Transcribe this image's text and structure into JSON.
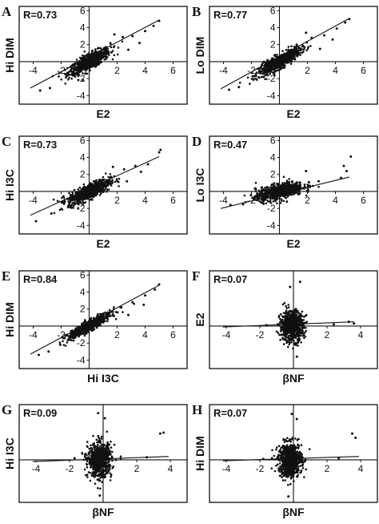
{
  "figure": {
    "background": "#ffffff",
    "ink": "#111111"
  },
  "chart_data": [
    {
      "letter": "A",
      "type": "scatter",
      "title": "",
      "xlabel": "E2",
      "ylabel": "Hi DIM",
      "annotation": "R=0.73",
      "r": 0.73,
      "xlim": [
        -5,
        7
      ],
      "ylim": [
        -5,
        6.5
      ],
      "xticks": [
        -4,
        -2,
        2,
        4,
        6
      ],
      "yticks": [
        -4,
        -2,
        2,
        4,
        6
      ],
      "regression_line": {
        "from": [
          -4.2,
          -3.1
        ],
        "to": [
          5,
          4.9
        ]
      },
      "point_cloud": {
        "center": [
          0,
          0
        ],
        "spread": 0.75,
        "slope": 0.85,
        "noise": 0.45,
        "n": 700
      },
      "outliers": [
        [
          2.4,
          2.9
        ],
        [
          3.1,
          3.0
        ],
        [
          4.0,
          3.6
        ],
        [
          4.6,
          4.2
        ],
        [
          5.0,
          4.8
        ],
        [
          1.8,
          3.2
        ],
        [
          2.8,
          1.4
        ],
        [
          -3.5,
          -3.4
        ],
        [
          -2.8,
          -3.1
        ],
        [
          3.6,
          2.2
        ]
      ],
      "grid": false,
      "legend": "none"
    },
    {
      "letter": "B",
      "type": "scatter",
      "title": "",
      "xlabel": "E2",
      "ylabel": "Lo DIM",
      "annotation": "R=0.77",
      "r": 0.77,
      "xlim": [
        -5,
        7
      ],
      "ylim": [
        -5,
        6.5
      ],
      "xticks": [
        -4,
        -2,
        2,
        4,
        6
      ],
      "yticks": [
        -4,
        -2,
        2,
        4,
        6
      ],
      "regression_line": {
        "from": [
          -4.2,
          -3.2
        ],
        "to": [
          5,
          5.1
        ]
      },
      "point_cloud": {
        "center": [
          0,
          0
        ],
        "spread": 0.75,
        "slope": 0.9,
        "noise": 0.4,
        "n": 700
      },
      "outliers": [
        [
          2.3,
          2.8
        ],
        [
          3.2,
          3.1
        ],
        [
          4.1,
          3.9
        ],
        [
          4.7,
          4.6
        ],
        [
          5.0,
          5.0
        ],
        [
          1.9,
          3.4
        ],
        [
          2.9,
          1.5
        ],
        [
          -3.6,
          -3.3
        ],
        [
          -2.9,
          -3.0
        ],
        [
          3.8,
          2.6
        ]
      ],
      "grid": false,
      "legend": "none"
    },
    {
      "letter": "C",
      "type": "scatter",
      "title": "",
      "xlabel": "E2",
      "ylabel": "Hi I3C",
      "annotation": "R=0.73",
      "r": 0.73,
      "xlim": [
        -5,
        7
      ],
      "ylim": [
        -5,
        6.5
      ],
      "xticks": [
        -4,
        -2,
        2,
        4,
        6
      ],
      "yticks": [
        -4,
        -2,
        2,
        4,
        6
      ],
      "regression_line": {
        "from": [
          -4.2,
          -2.8
        ],
        "to": [
          5,
          4.1
        ]
      },
      "point_cloud": {
        "center": [
          0,
          0
        ],
        "spread": 0.75,
        "slope": 0.75,
        "noise": 0.45,
        "n": 700
      },
      "outliers": [
        [
          2.5,
          2.6
        ],
        [
          3.3,
          3.0
        ],
        [
          4.2,
          3.2
        ],
        [
          5.0,
          4.6
        ],
        [
          5.1,
          4.9
        ],
        [
          1.7,
          2.9
        ],
        [
          2.7,
          1.2
        ],
        [
          -3.8,
          -3.5
        ],
        [
          -2.7,
          -2.6
        ],
        [
          3.7,
          2.3
        ]
      ],
      "grid": false,
      "legend": "none"
    },
    {
      "letter": "D",
      "type": "scatter",
      "title": "",
      "xlabel": "E2",
      "ylabel": "Lo I3C",
      "annotation": "R=0.47",
      "r": 0.47,
      "xlim": [
        -5,
        7
      ],
      "ylim": [
        -5,
        6.5
      ],
      "xticks": [
        -4,
        -2,
        2,
        4,
        6
      ],
      "yticks": [
        -4,
        -2,
        2,
        4,
        6
      ],
      "regression_line": {
        "from": [
          -4.2,
          -2.0
        ],
        "to": [
          5,
          1.7
        ]
      },
      "point_cloud": {
        "center": [
          0,
          0
        ],
        "spread": 0.85,
        "slope": 0.35,
        "noise": 0.45,
        "n": 700
      },
      "outliers": [
        [
          4.6,
          3.0
        ],
        [
          4.8,
          2.4
        ],
        [
          5.1,
          4.1
        ],
        [
          4.4,
          1.6
        ],
        [
          2.8,
          1.2
        ],
        [
          -3.5,
          -1.6
        ],
        [
          -2.6,
          -1.5
        ],
        [
          1.9,
          2.4
        ]
      ],
      "grid": false,
      "legend": "none"
    },
    {
      "letter": "E",
      "type": "scatter",
      "title": "",
      "xlabel": "Hi I3C",
      "ylabel": "Hi DIM",
      "annotation": "R=0.84",
      "r": 0.84,
      "xlim": [
        -5,
        7
      ],
      "ylim": [
        -5,
        6.5
      ],
      "xticks": [
        -4,
        -2,
        2,
        4,
        6
      ],
      "yticks": [
        -4,
        -2,
        2,
        4,
        6
      ],
      "regression_line": {
        "from": [
          -4.2,
          -3.3
        ],
        "to": [
          5,
          4.8
        ]
      },
      "point_cloud": {
        "center": [
          0,
          0
        ],
        "spread": 0.75,
        "slope": 0.9,
        "noise": 0.3,
        "n": 700
      },
      "outliers": [
        [
          2.3,
          2.2
        ],
        [
          3.1,
          2.8
        ],
        [
          4.0,
          3.6
        ],
        [
          4.7,
          4.3
        ],
        [
          5.0,
          4.9
        ],
        [
          2.8,
          1.3
        ],
        [
          -3.6,
          -3.4
        ],
        [
          -2.9,
          -3.0
        ],
        [
          3.9,
          2.5
        ]
      ],
      "grid": false,
      "legend": "none"
    },
    {
      "letter": "F",
      "type": "scatter",
      "title": "",
      "xlabel": "βNF",
      "ylabel": "E2",
      "annotation": "R=0.07",
      "r": 0.07,
      "xlim": [
        -5,
        5
      ],
      "ylim": [
        -5,
        6.5
      ],
      "xticks": [
        -4,
        -2,
        2,
        4
      ],
      "yticks": [],
      "regression_line": {
        "from": [
          -4.2,
          -0.1
        ],
        "to": [
          3.6,
          0.5
        ]
      },
      "point_cloud": {
        "center": [
          -0.1,
          0
        ],
        "spread": 0.35,
        "slope": 0.05,
        "noise": 0.9,
        "n": 700
      },
      "outliers": [
        [
          0.4,
          5.2
        ],
        [
          -0.2,
          4.6
        ],
        [
          3.3,
          0.5
        ],
        [
          3.6,
          0.3
        ],
        [
          2.4,
          0.2
        ],
        [
          -1.6,
          0.1
        ],
        [
          0.2,
          -3.6
        ]
      ],
      "grid": false,
      "legend": "none"
    },
    {
      "letter": "G",
      "type": "scatter",
      "title": "",
      "xlabel": "βNF",
      "ylabel": "Hi I3C",
      "annotation": "R=0.09",
      "r": 0.09,
      "xlim": [
        -5,
        5
      ],
      "ylim": [
        -5,
        6.5
      ],
      "xticks": [
        -4,
        -2,
        2,
        4
      ],
      "yticks": [],
      "regression_line": {
        "from": [
          -4.2,
          -0.2
        ],
        "to": [
          3.9,
          0.4
        ]
      },
      "point_cloud": {
        "center": [
          -0.2,
          0
        ],
        "spread": 0.35,
        "slope": 0.05,
        "noise": 1.0,
        "n": 700
      },
      "outliers": [
        [
          3.4,
          3.1
        ],
        [
          3.6,
          3.2
        ],
        [
          -0.3,
          5.5
        ],
        [
          0.1,
          4.9
        ],
        [
          2.6,
          0.3
        ],
        [
          -1.7,
          0.2
        ],
        [
          -0.2,
          -4.2
        ]
      ],
      "grid": false,
      "legend": "none"
    },
    {
      "letter": "H",
      "type": "scatter",
      "title": "",
      "xlabel": "βNF",
      "ylabel": "Hi DIM",
      "annotation": "R=0.07",
      "r": 0.07,
      "xlim": [
        -5,
        5
      ],
      "ylim": [
        -5,
        6.5
      ],
      "xticks": [
        -4,
        -2,
        2,
        4
      ],
      "yticks": [],
      "regression_line": {
        "from": [
          -4.2,
          -0.1
        ],
        "to": [
          3.9,
          0.4
        ]
      },
      "point_cloud": {
        "center": [
          -0.2,
          0
        ],
        "spread": 0.35,
        "slope": 0.05,
        "noise": 1.0,
        "n": 700
      },
      "outliers": [
        [
          3.5,
          3.1
        ],
        [
          3.7,
          2.6
        ],
        [
          -0.1,
          5.4
        ],
        [
          0.2,
          4.8
        ],
        [
          2.7,
          0.2
        ],
        [
          -1.8,
          0.1
        ],
        [
          -0.3,
          -4.3
        ]
      ],
      "grid": false,
      "legend": "none"
    }
  ]
}
